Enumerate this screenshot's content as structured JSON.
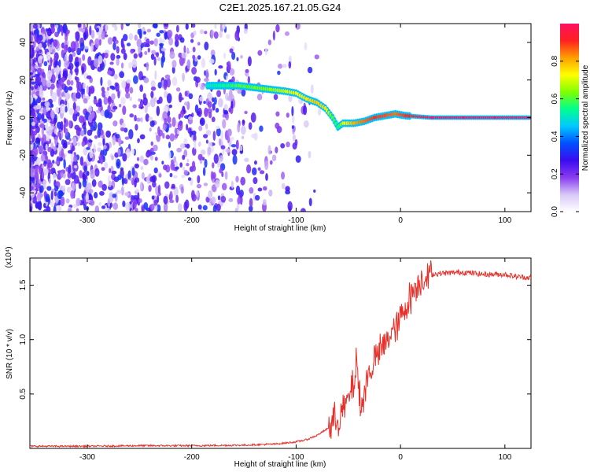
{
  "title": "C2E1.2025.167.21.05.G24",
  "colors": {
    "line": "#e8302a",
    "axis": "#000000",
    "background": "#ffffff"
  },
  "chart_data": [
    {
      "type": "heatmap",
      "xlabel": "Height of straight line (km)",
      "ylabel": "Frequency (Hz)",
      "xlim": [
        -355,
        125
      ],
      "ylim": [
        -50,
        50
      ],
      "x_ticks": [
        -300,
        -200,
        -100,
        0,
        100
      ],
      "y_ticks": [
        -40,
        -20,
        0,
        20,
        40
      ],
      "colorbar": {
        "label": "Normalized spectral amplitude",
        "range": [
          0,
          1
        ],
        "ticks": [
          "0.0",
          "0.2",
          "0.4",
          "0.6",
          "0.8"
        ],
        "tick_values": [
          0.0,
          0.2,
          0.4,
          0.6,
          0.8
        ],
        "colormap": [
          "#ffffff",
          "#d8c8f8",
          "#8a3cf0",
          "#3a0cf0",
          "#0050ff",
          "#00c8ff",
          "#00ff90",
          "#80ff00",
          "#ffff00",
          "#ffa000",
          "#ff2020",
          "#ff1060"
        ]
      },
      "ridge": [
        {
          "x": -185,
          "y": 17,
          "amp": 0.5
        },
        {
          "x": -170,
          "y": 17,
          "amp": 0.55
        },
        {
          "x": -155,
          "y": 17,
          "amp": 0.6
        },
        {
          "x": -140,
          "y": 16,
          "amp": 0.62
        },
        {
          "x": -125,
          "y": 15,
          "amp": 0.65
        },
        {
          "x": -110,
          "y": 14,
          "amp": 0.7
        },
        {
          "x": -100,
          "y": 13,
          "amp": 0.72
        },
        {
          "x": -90,
          "y": 10,
          "amp": 0.75
        },
        {
          "x": -80,
          "y": 8,
          "amp": 0.78
        },
        {
          "x": -72,
          "y": 5,
          "amp": 0.75
        },
        {
          "x": -65,
          "y": 0,
          "amp": 0.6
        },
        {
          "x": -60,
          "y": -5,
          "amp": 0.55
        },
        {
          "x": -55,
          "y": -3,
          "amp": 0.7
        },
        {
          "x": -45,
          "y": -3,
          "amp": 0.8
        },
        {
          "x": -35,
          "y": -2,
          "amp": 0.85
        },
        {
          "x": -25,
          "y": 0,
          "amp": 0.9
        },
        {
          "x": -15,
          "y": 1,
          "amp": 0.88
        },
        {
          "x": -5,
          "y": 2,
          "amp": 0.85
        },
        {
          "x": 5,
          "y": 1,
          "amp": 0.9
        },
        {
          "x": 30,
          "y": 0,
          "amp": 1.0
        },
        {
          "x": 60,
          "y": 0,
          "amp": 1.0
        },
        {
          "x": 90,
          "y": 0,
          "amp": 1.0
        },
        {
          "x": 125,
          "y": 0,
          "amp": 1.0
        }
      ]
    },
    {
      "type": "line",
      "xlabel": "Height of straight line (km)",
      "ylabel": "SNR (10 * v/v)",
      "y_multiplier": "(x10⁴)",
      "xlim": [
        -355,
        125
      ],
      "ylim": [
        0,
        1.75
      ],
      "x_ticks": [
        -300,
        -200,
        -100,
        0,
        100
      ],
      "y_ticks": [
        0.5,
        1.0,
        1.5
      ],
      "y_tick_labels": [
        "0.5",
        "1.0",
        "1.5"
      ],
      "series": [
        {
          "x": [
            -355,
            -300,
            -250,
            -200,
            -150,
            -120,
            -100,
            -90,
            -80,
            -70,
            -60,
            -55,
            -50,
            -45,
            -42,
            -40,
            -38,
            -35,
            -30,
            -25,
            -20,
            -15,
            -10,
            -5,
            0,
            5,
            10,
            15,
            20,
            30,
            40,
            60,
            80,
            100,
            110,
            125
          ],
          "y": [
            0.02,
            0.02,
            0.025,
            0.025,
            0.03,
            0.04,
            0.06,
            0.08,
            0.12,
            0.18,
            0.28,
            0.35,
            0.45,
            0.6,
            0.8,
            0.55,
            0.35,
            0.5,
            0.7,
            0.8,
            0.9,
            0.95,
            1.05,
            1.1,
            1.2,
            1.3,
            1.4,
            1.5,
            1.56,
            1.6,
            1.61,
            1.62,
            1.6,
            1.6,
            1.58,
            1.57
          ]
        }
      ]
    }
  ]
}
